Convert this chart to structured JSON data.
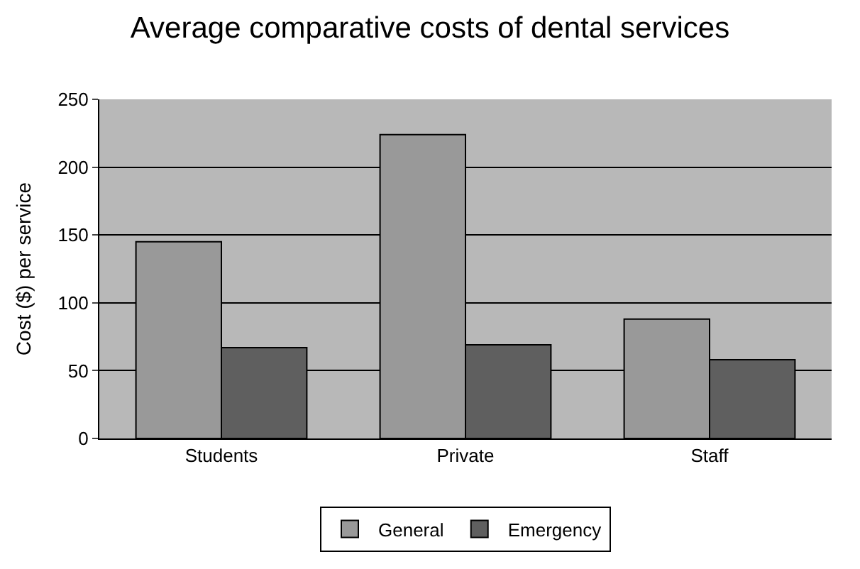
{
  "chart_data": {
    "type": "bar",
    "title": "Average comparative costs of dental services",
    "ylabel": "Cost ($) per service",
    "categories": [
      "Students",
      "Private",
      "Staff"
    ],
    "series": [
      {
        "name": "General",
        "color": "#999999",
        "values": [
          145,
          224,
          88
        ]
      },
      {
        "name": "Emergency",
        "color": "#5f5f5f",
        "values": [
          67,
          69,
          58
        ]
      }
    ],
    "ylim": [
      0,
      250
    ],
    "yticks": [
      0,
      50,
      100,
      150,
      200,
      250
    ],
    "grid": "y",
    "legend": "bottom"
  }
}
